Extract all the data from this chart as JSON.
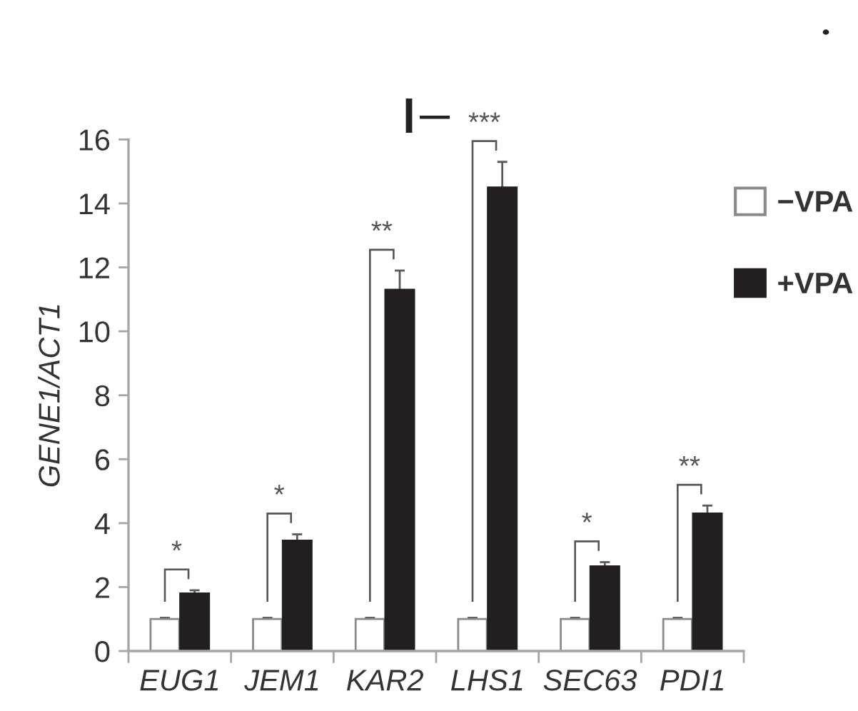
{
  "chart_data": {
    "type": "bar",
    "ylabel": "GENE1/ACT1",
    "categories": [
      "EUG1",
      "JEM1",
      "KAR2",
      "LHS1",
      "SEC63",
      "PDI1"
    ],
    "series": [
      {
        "name": "−VPA",
        "color": "#ffffff",
        "values": [
          1,
          1,
          1,
          1,
          1,
          1
        ],
        "errors": [
          0.04,
          0.04,
          0.04,
          0.04,
          0.04,
          0.04
        ]
      },
      {
        "name": "+VPA",
        "color": "#231f20",
        "values": [
          1.8,
          3.45,
          11.3,
          14.5,
          2.65,
          4.3
        ],
        "errors": [
          0.1,
          0.2,
          0.6,
          0.8,
          0.13,
          0.25
        ]
      }
    ],
    "ylim": [
      0,
      16
    ],
    "yticks": [
      0,
      2,
      4,
      6,
      8,
      10,
      12,
      14,
      16
    ],
    "grid": false,
    "legend": "top right",
    "annotations": [
      "*",
      "*",
      "**",
      "***",
      "*",
      "**"
    ]
  }
}
